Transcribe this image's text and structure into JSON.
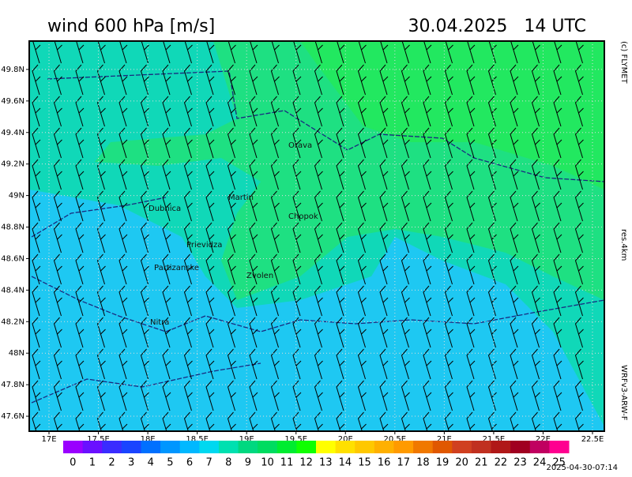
{
  "header": {
    "title": "wind 600 hPa [m/s]",
    "datetime": "30.04.2025   14 UTC"
  },
  "side_labels": {
    "copyright": "(c) FLYMET",
    "resolution": "res.4km",
    "model": "WRFv3-ARW-F"
  },
  "timestamp": "2025-04-30-07:14",
  "map": {
    "lat_lim": [
      47.505,
      49.98
    ],
    "lon_lim": [
      16.8,
      22.62
    ],
    "lat_ticks": [
      {
        "value": 49.8,
        "label": "49.8N"
      },
      {
        "value": 49.6,
        "label": "49.6N"
      },
      {
        "value": 49.4,
        "label": "49.4N"
      },
      {
        "value": 49.2,
        "label": "49.2N"
      },
      {
        "value": 49,
        "label": "49N"
      },
      {
        "value": 48.8,
        "label": "48.8N"
      },
      {
        "value": 48.6,
        "label": "48.6N"
      },
      {
        "value": 48.4,
        "label": "48.4N"
      },
      {
        "value": 48.2,
        "label": "48.2N"
      },
      {
        "value": 48,
        "label": "48N"
      },
      {
        "value": 47.8,
        "label": "47.8N"
      },
      {
        "value": 47.6,
        "label": "47.6N"
      }
    ],
    "lon_ticks": [
      {
        "value": 17,
        "label": "17E"
      },
      {
        "value": 17.5,
        "label": "17.5E"
      },
      {
        "value": 18,
        "label": "18E"
      },
      {
        "value": 18.5,
        "label": "18.5E"
      },
      {
        "value": 19,
        "label": "19E"
      },
      {
        "value": 19.5,
        "label": "19.5E"
      },
      {
        "value": 20,
        "label": "20E"
      },
      {
        "value": 20.5,
        "label": "20.5E"
      },
      {
        "value": 21,
        "label": "21E"
      },
      {
        "value": 21.5,
        "label": "21.5E"
      },
      {
        "value": 22,
        "label": "22E"
      },
      {
        "value": 22.5,
        "label": "22.5E"
      }
    ],
    "cities": [
      "Orava",
      "Dubnica",
      "Martin",
      "Chopok",
      "Prievidza",
      "Partizanske",
      "Zvolen",
      "Nitra"
    ]
  },
  "colorbar": {
    "labels": [
      0,
      1,
      2,
      3,
      4,
      5,
      6,
      7,
      8,
      9,
      10,
      11,
      12,
      13,
      14,
      15,
      16,
      17,
      18,
      19,
      20,
      21,
      22,
      23,
      24,
      25
    ],
    "colors": [
      "#9a00ff",
      "#6a10ff",
      "#3a2cff",
      "#1a44ff",
      "#0070ff",
      "#0096ff",
      "#00b8ff",
      "#00d8f0",
      "#00e0b0",
      "#00d880",
      "#00dc60",
      "#00ec30",
      "#10ff00",
      "#ffff00",
      "#ffe000",
      "#ffc800",
      "#ffb000",
      "#ff9a00",
      "#f07800",
      "#e05800",
      "#d04020",
      "#c03020",
      "#b01818",
      "#a00020",
      "#c00060",
      "#ff0090"
    ]
  }
}
